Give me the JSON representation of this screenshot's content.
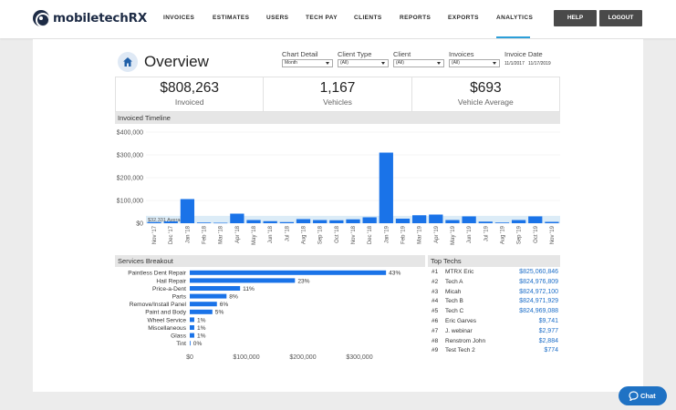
{
  "app": {
    "logo_text": "mobiletechRX"
  },
  "nav": {
    "items": [
      {
        "label": "INVOICES",
        "active": false
      },
      {
        "label": "ESTIMATES",
        "active": false
      },
      {
        "label": "USERS",
        "active": false
      },
      {
        "label": "TECH PAY",
        "active": false
      },
      {
        "label": "CLIENTS",
        "active": false
      },
      {
        "label": "REPORTS",
        "active": false
      },
      {
        "label": "EXPORTS",
        "active": false
      },
      {
        "label": "ANALYTICS",
        "active": true
      }
    ],
    "help_label": "HELP",
    "logout_label": "LOGOUT"
  },
  "page": {
    "title": "Overview",
    "home_icon": "home-icon"
  },
  "filters": {
    "chart_detail": {
      "label": "Chart Detail",
      "value": "Month"
    },
    "client_type": {
      "label": "Client Type",
      "value": "(All)"
    },
    "client": {
      "label": "Client",
      "value": "(All)"
    },
    "invoices": {
      "label": "Invoices",
      "value": "(All)"
    },
    "invoice_date": {
      "label": "Invoice Date",
      "start": "11/1/2017",
      "end": "11/17/2019"
    }
  },
  "kpis": [
    {
      "value": "$808,263",
      "label": "Invoiced"
    },
    {
      "value": "1,167",
      "label": "Vehicles"
    },
    {
      "value": "$693",
      "label": "Vehicle Average"
    }
  ],
  "sections": {
    "timeline": "Invoiced Timeline",
    "services": "Services Breakout",
    "techs": "Top Techs"
  },
  "colors": {
    "bar": "#1a73e8",
    "accent": "#2c9fd8",
    "avg_band": "#dcecf7"
  },
  "chart_data": [
    {
      "type": "bar",
      "title": "Invoiced Timeline",
      "categories": [
        "Nov '17",
        "Dec '17",
        "Jan '18",
        "Feb '18",
        "Mar '18",
        "Apr '18",
        "May '18",
        "Jun '18",
        "Jul '18",
        "Aug '18",
        "Sep '18",
        "Oct '18",
        "Nov '18",
        "Dec '18",
        "Jan '19",
        "Feb '19",
        "Mar '19",
        "Apr '19",
        "May '19",
        "Jun '19",
        "Jul '19",
        "Aug '19",
        "Sep '19",
        "Oct '19",
        "Nov '19"
      ],
      "values": [
        5000,
        8000,
        106000,
        3000,
        2000,
        42000,
        14000,
        9000,
        5000,
        18000,
        14000,
        13000,
        17000,
        26000,
        310000,
        20000,
        35000,
        38000,
        14000,
        30000,
        7000,
        3000,
        14000,
        30000,
        6000
      ],
      "yticks": [
        "$0",
        "$100,000",
        "$200,000",
        "$300,000",
        "$400,000"
      ],
      "ylim": [
        0,
        400000
      ],
      "average": {
        "value": 32331,
        "label": "$32,331 Average"
      },
      "grid": true
    },
    {
      "type": "bar",
      "orientation": "horizontal",
      "title": "Services Breakout",
      "categories": [
        "Paintless Dent Repair",
        "Hail Repair",
        "Price-a-Dent",
        "Parts",
        "Remove/Install Panel",
        "Paint and Body",
        "Wheel Service",
        "Miscellaneous",
        "Glass",
        "Tint"
      ],
      "values": [
        347000,
        186000,
        89000,
        65000,
        48000,
        40000,
        8000,
        8000,
        8000,
        1000
      ],
      "labels": [
        "43%",
        "23%",
        "11%",
        "8%",
        "6%",
        "5%",
        "1%",
        "1%",
        "1%",
        "0%"
      ],
      "xticks": [
        "$0",
        "$100,000",
        "$200,000",
        "$300,000"
      ],
      "xlim": [
        0,
        400000
      ]
    }
  ],
  "top_techs": [
    {
      "rank": "#1",
      "name": "MTRX Eric",
      "amount": "$825,060,846"
    },
    {
      "rank": "#2",
      "name": "Tech A",
      "amount": "$824,976,809"
    },
    {
      "rank": "#3",
      "name": "Micah",
      "amount": "$824,972,100"
    },
    {
      "rank": "#4",
      "name": "Tech B",
      "amount": "$824,971,929"
    },
    {
      "rank": "#5",
      "name": "Tech C",
      "amount": "$824,969,088"
    },
    {
      "rank": "#6",
      "name": "Eric Garves",
      "amount": "$9,741"
    },
    {
      "rank": "#7",
      "name": "J. webinar",
      "amount": "$2,977"
    },
    {
      "rank": "#8",
      "name": "Renstrom John",
      "amount": "$2,884"
    },
    {
      "rank": "#9",
      "name": "Test Tech 2",
      "amount": "$774"
    }
  ],
  "chat": {
    "label": "Chat",
    "icon": "chat-bubble-icon"
  }
}
